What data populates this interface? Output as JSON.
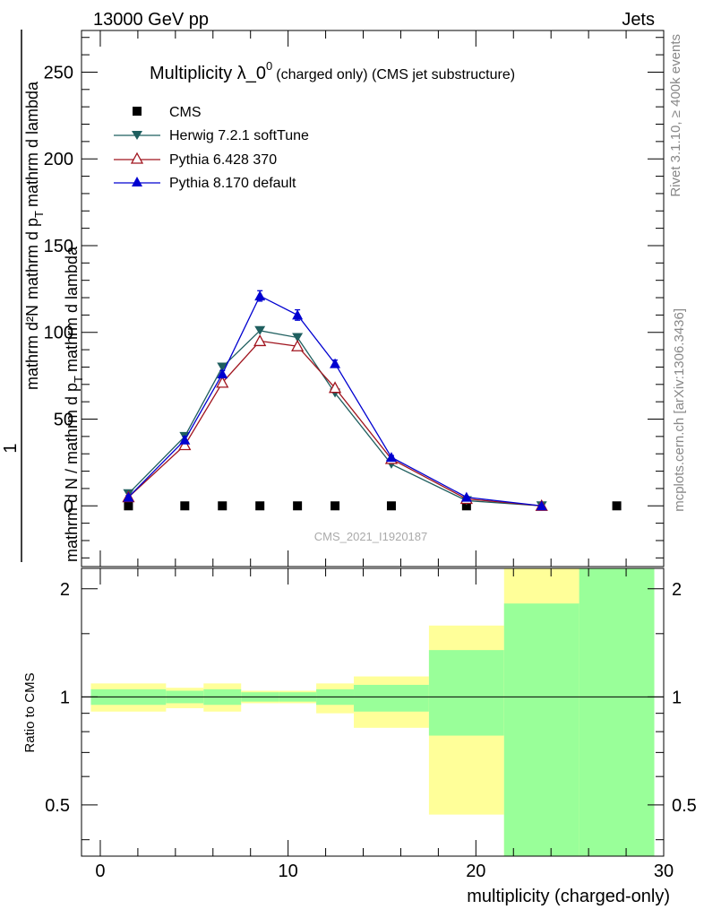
{
  "header": {
    "energy": "13000 GeV pp",
    "category": "Jets"
  },
  "side_labels": {
    "rivet": "Rivet 3.1.10, ≥ 400k events",
    "mcplots": "mcplots.cern.ch [arXiv:1306.3436]"
  },
  "watermark": "CMS_2021_I1920187",
  "colors": {
    "cms": "#000000",
    "herwig": "#1f5f5f",
    "pythia6": "#a0141e",
    "pythia8": "#0000d0",
    "band_outer": "#ffff99",
    "band_inner": "#99ff99"
  },
  "chart_data": [
    {
      "type": "scatter",
      "title_main": "Multiplicity λ_0",
      "title_sup": "0",
      "title_sub": "(charged only) (CMS jet substructure)",
      "ylabel_prefix": "1",
      "ylabel_num": "mathrm dN / mathrm d p_T mathrm d lambda",
      "ylabel_den": "mathrm d N / mathrm d p_T mathrm d lambda",
      "ylabel_top": "mathrm d²N",
      "ylabel_mid": "mathrm d p",
      "ylabel_mid_sub": "T",
      "ylabel_end": "mathrm d lambda",
      "ylabel_den_text": "mathrm d N / mathrm d p",
      "ylabel_den_sub": "T",
      "ylabel_den_end": "mathrm d lambda",
      "xlim": [
        -1,
        30
      ],
      "ylim": [
        -35,
        274
      ],
      "yticks": [
        0,
        50,
        100,
        150,
        200,
        250
      ],
      "ytick_labels": [
        "0",
        "50",
        "100",
        "150",
        "200",
        "250"
      ],
      "series": [
        {
          "name": "CMS",
          "marker": "square",
          "color": "#000000",
          "line": false,
          "x": [
            1.5,
            4.5,
            6.5,
            8.5,
            10.5,
            12.5,
            15.5,
            19.5,
            27.5
          ],
          "y": [
            0,
            0,
            0,
            0,
            0,
            0,
            0,
            0,
            0
          ]
        },
        {
          "name": "Herwig 7.2.1 softTune",
          "marker": "triangle-down",
          "color": "#1f5f5f",
          "line": true,
          "x": [
            1.5,
            4.5,
            6.5,
            8.5,
            10.5,
            12.5,
            15.5,
            19.5,
            23.5
          ],
          "y": [
            7,
            40,
            80,
            101,
            97,
            65,
            24,
            3,
            0
          ]
        },
        {
          "name": "Pythia 6.428 370",
          "marker": "triangle-open",
          "color": "#a0141e",
          "line": true,
          "x": [
            1.5,
            4.5,
            6.5,
            8.5,
            10.5,
            12.5,
            15.5,
            19.5,
            23.5
          ],
          "y": [
            5,
            35,
            71,
            95,
            92,
            68,
            27,
            4,
            0
          ]
        },
        {
          "name": "Pythia 8.170 default",
          "marker": "triangle-up",
          "color": "#0000d0",
          "line": true,
          "x": [
            1.5,
            4.5,
            6.5,
            8.5,
            10.5,
            12.5,
            15.5,
            19.5,
            23.5
          ],
          "y": [
            5,
            38,
            76,
            121,
            110,
            82,
            28,
            5,
            0
          ],
          "err": [
            1,
            2,
            2,
            3,
            3,
            2,
            1,
            0.5,
            0
          ]
        }
      ]
    },
    {
      "type": "area",
      "ylabel": "Ratio to CMS",
      "xlabel": "multiplicity (charged-only)",
      "xlim": [
        -1,
        30
      ],
      "ylim": [
        0.36,
        2.28
      ],
      "xticks": [
        0,
        10,
        20,
        30
      ],
      "xtick_labels": [
        "0",
        "10",
        "20",
        "30"
      ],
      "yticks": [
        0.5,
        1,
        2
      ],
      "ytick_labels": [
        "0.5",
        "1",
        "2"
      ],
      "reference_line": 1,
      "bins": [
        {
          "lo": -0.5,
          "hi": 3.5,
          "outer": [
            0.91,
            1.09
          ],
          "inner": [
            0.95,
            1.05
          ]
        },
        {
          "lo": 3.5,
          "hi": 5.5,
          "outer": [
            0.93,
            1.06
          ],
          "inner": [
            0.96,
            1.04
          ]
        },
        {
          "lo": 5.5,
          "hi": 7.5,
          "outer": [
            0.91,
            1.09
          ],
          "inner": [
            0.95,
            1.05
          ]
        },
        {
          "lo": 7.5,
          "hi": 9.5,
          "outer": [
            0.96,
            1.04
          ],
          "inner": [
            0.97,
            1.03
          ]
        },
        {
          "lo": 9.5,
          "hi": 11.5,
          "outer": [
            0.96,
            1.04
          ],
          "inner": [
            0.97,
            1.03
          ]
        },
        {
          "lo": 11.5,
          "hi": 13.5,
          "outer": [
            0.9,
            1.09
          ],
          "inner": [
            0.95,
            1.05
          ]
        },
        {
          "lo": 13.5,
          "hi": 17.5,
          "outer": [
            0.82,
            1.14
          ],
          "inner": [
            0.91,
            1.08
          ]
        },
        {
          "lo": 17.5,
          "hi": 21.5,
          "outer": [
            0.47,
            1.58
          ],
          "inner": [
            0.78,
            1.35
          ]
        },
        {
          "lo": 21.5,
          "hi": 25.5,
          "outer": [
            0.36,
            2.28
          ],
          "inner": [
            0.36,
            1.82
          ]
        },
        {
          "lo": 25.5,
          "hi": 29.5,
          "outer": [
            0.36,
            2.28
          ],
          "inner": [
            0.36,
            2.28
          ]
        }
      ]
    }
  ]
}
